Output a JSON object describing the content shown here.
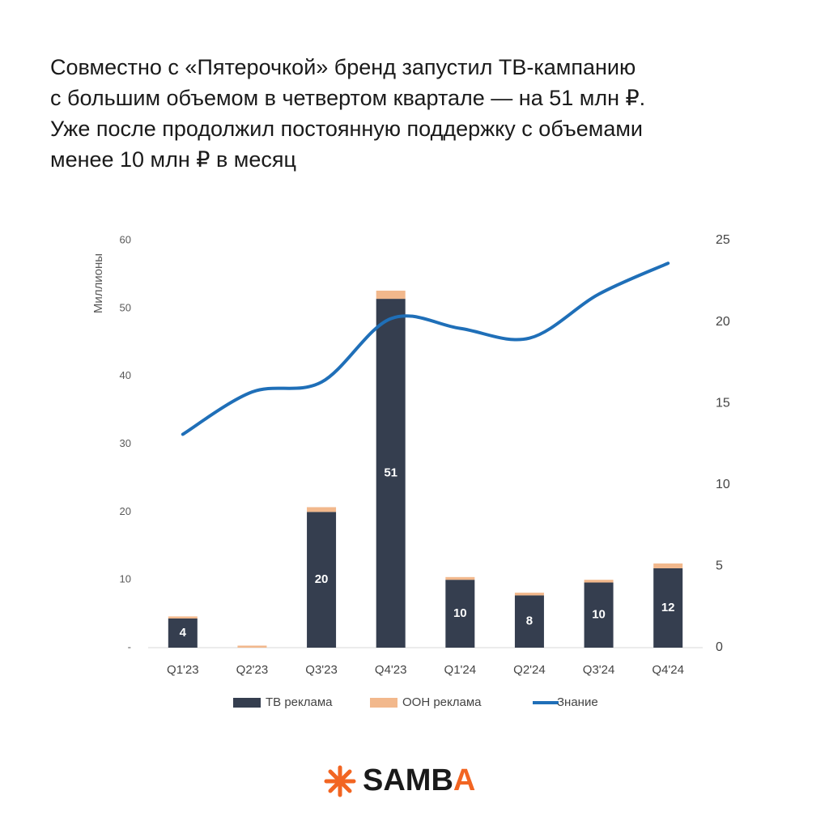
{
  "title_lines": [
    "Совместно с «Пятерочкой» бренд запустил ТВ-кампанию",
    "с большим объемом в четвертом квартале — на 51 млн ₽.",
    "Уже после продолжил постоянную поддержку с объемами",
    "менее 10 млн ₽ в месяц"
  ],
  "chart_data": {
    "type": "bar",
    "ylabel": "Миллионы",
    "categories": [
      "Q1'23",
      "Q2'23",
      "Q3'23",
      "Q4'23",
      "Q1'24",
      "Q2'24",
      "Q3'24",
      "Q4'24"
    ],
    "stacked": true,
    "series": [
      {
        "name": "ТВ реклама",
        "color": "#353e4f",
        "values": [
          4.3,
          0,
          20,
          51.4,
          10,
          7.7,
          9.6,
          11.7
        ],
        "value_labels": [
          "4",
          null,
          "20",
          "51",
          "10",
          "8",
          "10",
          "12"
        ]
      },
      {
        "name": "ООН реклама",
        "color": "#f2b88c",
        "values": [
          0.3,
          0.3,
          0.7,
          1.2,
          0.4,
          0.4,
          0.4,
          0.7
        ]
      },
      {
        "name": "Знание",
        "type": "line",
        "axis": "y2",
        "color": "#1f6fb8",
        "values": [
          13.1,
          15.7,
          16.3,
          20.2,
          19.6,
          19.0,
          21.7,
          23.6
        ]
      }
    ],
    "ylim": [
      0,
      60
    ],
    "yticks": [
      {
        "value": 0,
        "label": "-"
      },
      10,
      20,
      30,
      40,
      50,
      60
    ],
    "y2lim": [
      0,
      25
    ],
    "y2ticks": [
      0,
      5,
      10,
      15,
      20,
      25
    ],
    "legend": "bottom"
  },
  "logo": "SAMBA"
}
